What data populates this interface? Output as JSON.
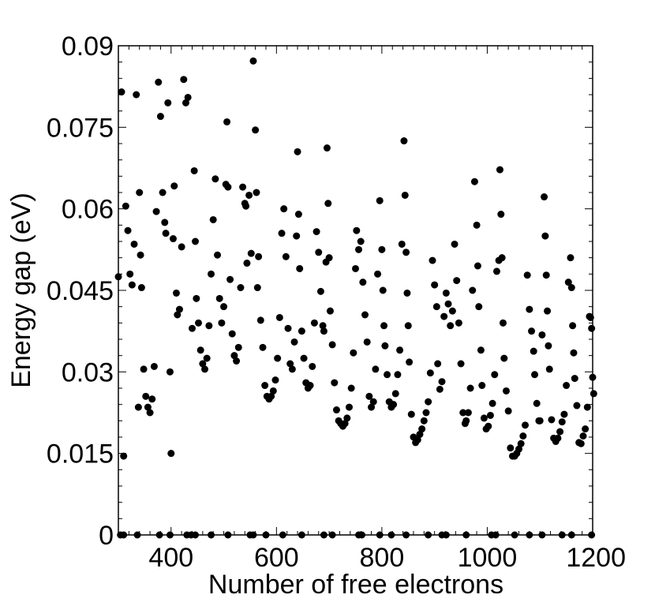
{
  "chart_data": {
    "type": "scatter",
    "xlabel": "Number of free electrons",
    "ylabel": "Energy gap (eV)",
    "xlim": [
      300,
      1200
    ],
    "ylim": [
      0,
      0.09
    ],
    "x_ticks": [
      400,
      600,
      800,
      1000,
      1200
    ],
    "x_tick_labels": [
      "400",
      "600",
      "800",
      "1000",
      "1200"
    ],
    "y_ticks": [
      0,
      0.015,
      0.03,
      0.045,
      0.06,
      0.075,
      0.09
    ],
    "y_tick_labels": [
      "0",
      "0.015",
      "0.03",
      "0.045",
      "0.06",
      "0.075",
      "0.09"
    ],
    "grid": false,
    "legend": "none",
    "marker_color": "#000000",
    "series": [
      {
        "points": [
          [
            300,
            0.0475
          ],
          [
            306,
            0.0815
          ],
          [
            310,
            0.0145
          ],
          [
            314,
            0.0605
          ],
          [
            318,
            0.056
          ],
          [
            322,
            0.048
          ],
          [
            326,
            0.046
          ],
          [
            330,
            0.0535
          ],
          [
            334,
            0.081
          ],
          [
            338,
            0.0235
          ],
          [
            340,
            0.063
          ],
          [
            342,
            0.0515
          ],
          [
            344,
            0.0455
          ],
          [
            348,
            0.0305
          ],
          [
            352,
            0.0255
          ],
          [
            356,
            0.0235
          ],
          [
            360,
            0.0225
          ],
          [
            364,
            0.025
          ],
          [
            368,
            0.031
          ],
          [
            372,
            0.0595
          ],
          [
            376,
            0.0833
          ],
          [
            380,
            0.077
          ],
          [
            384,
            0.063
          ],
          [
            388,
            0.0575
          ],
          [
            390,
            0.0555
          ],
          [
            394,
            0.0795
          ],
          [
            398,
            0.03
          ],
          [
            400,
            0.015
          ],
          [
            404,
            0.0545
          ],
          [
            406,
            0.0642
          ],
          [
            410,
            0.0445
          ],
          [
            412,
            0.0405
          ],
          [
            416,
            0.0415
          ],
          [
            420,
            0.053
          ],
          [
            424,
            0.0838
          ],
          [
            428,
            0.0795
          ],
          [
            432,
            0.0805
          ],
          [
            440,
            0.038
          ],
          [
            444,
            0.067
          ],
          [
            446,
            0.054
          ],
          [
            448,
            0.0435
          ],
          [
            452,
            0.039
          ],
          [
            456,
            0.034
          ],
          [
            460,
            0.0315
          ],
          [
            464,
            0.0305
          ],
          [
            468,
            0.0325
          ],
          [
            472,
            0.0385
          ],
          [
            476,
            0.048
          ],
          [
            480,
            0.058
          ],
          [
            484,
            0.0655
          ],
          [
            488,
            0.0515
          ],
          [
            492,
            0.0435
          ],
          [
            496,
            0.039
          ],
          [
            500,
            0.042
          ],
          [
            504,
            0.0645
          ],
          [
            506,
            0.076
          ],
          [
            508,
            0.064
          ],
          [
            512,
            0.047
          ],
          [
            516,
            0.037
          ],
          [
            520,
            0.033
          ],
          [
            524,
            0.032
          ],
          [
            528,
            0.0345
          ],
          [
            532,
            0.0455
          ],
          [
            536,
            0.064
          ],
          [
            540,
            0.061
          ],
          [
            542,
            0.0605
          ],
          [
            544,
            0.05
          ],
          [
            548,
            0.0625
          ],
          [
            552,
            0.0518
          ],
          [
            556,
            0.0872
          ],
          [
            560,
            0.0745
          ],
          [
            562,
            0.063
          ],
          [
            564,
            0.0455
          ],
          [
            566,
            0.0512
          ],
          [
            570,
            0.0395
          ],
          [
            574,
            0.0345
          ],
          [
            578,
            0.0275
          ],
          [
            582,
            0.0255
          ],
          [
            586,
            0.025
          ],
          [
            590,
            0.0255
          ],
          [
            594,
            0.0265
          ],
          [
            598,
            0.0285
          ],
          [
            602,
            0.0325
          ],
          [
            606,
            0.04
          ],
          [
            610,
            0.0555
          ],
          [
            614,
            0.06
          ],
          [
            618,
            0.0512
          ],
          [
            622,
            0.038
          ],
          [
            626,
            0.0315
          ],
          [
            630,
            0.0305
          ],
          [
            634,
            0.0355
          ],
          [
            638,
            0.055
          ],
          [
            640,
            0.0705
          ],
          [
            642,
            0.059
          ],
          [
            644,
            0.049
          ],
          [
            648,
            0.0375
          ],
          [
            652,
            0.0325
          ],
          [
            656,
            0.028
          ],
          [
            660,
            0.027
          ],
          [
            664,
            0.0275
          ],
          [
            668,
            0.031
          ],
          [
            672,
            0.039
          ],
          [
            676,
            0.0558
          ],
          [
            680,
            0.052
          ],
          [
            684,
            0.0448
          ],
          [
            688,
            0.0385
          ],
          [
            690,
            0.0375
          ],
          [
            694,
            0.0502
          ],
          [
            696,
            0.0712
          ],
          [
            698,
            0.061
          ],
          [
            700,
            0.051
          ],
          [
            702,
            0.0412
          ],
          [
            706,
            0.035
          ],
          [
            710,
            0.028
          ],
          [
            714,
            0.023
          ],
          [
            718,
            0.021
          ],
          [
            722,
            0.0205
          ],
          [
            726,
            0.02
          ],
          [
            730,
            0.0205
          ],
          [
            734,
            0.0215
          ],
          [
            738,
            0.0235
          ],
          [
            742,
            0.027
          ],
          [
            746,
            0.0335
          ],
          [
            750,
            0.049
          ],
          [
            752,
            0.056
          ],
          [
            756,
            0.0525
          ],
          [
            760,
            0.054
          ],
          [
            764,
            0.0465
          ],
          [
            768,
            0.0405
          ],
          [
            772,
            0.0355
          ],
          [
            776,
            0.0255
          ],
          [
            780,
            0.0235
          ],
          [
            784,
            0.0245
          ],
          [
            788,
            0.0305
          ],
          [
            792,
            0.048
          ],
          [
            796,
            0.0615
          ],
          [
            800,
            0.0525
          ],
          [
            802,
            0.045
          ],
          [
            804,
            0.0385
          ],
          [
            806,
            0.0348
          ],
          [
            810,
            0.0295
          ],
          [
            814,
            0.0245
          ],
          [
            818,
            0.0235
          ],
          [
            822,
            0.024
          ],
          [
            826,
            0.026
          ],
          [
            830,
            0.0295
          ],
          [
            834,
            0.034
          ],
          [
            838,
            0.0535
          ],
          [
            842,
            0.0725
          ],
          [
            844,
            0.0625
          ],
          [
            846,
            0.052
          ],
          [
            848,
            0.0445
          ],
          [
            850,
            0.0385
          ],
          [
            852,
            0.0318
          ],
          [
            856,
            0.0222
          ],
          [
            860,
            0.018
          ],
          [
            864,
            0.017
          ],
          [
            868,
            0.0175
          ],
          [
            872,
            0.0185
          ],
          [
            876,
            0.0195
          ],
          [
            880,
            0.021
          ],
          [
            884,
            0.0225
          ],
          [
            888,
            0.0245
          ],
          [
            892,
            0.0298
          ],
          [
            896,
            0.0505
          ],
          [
            900,
            0.046
          ],
          [
            904,
            0.042
          ],
          [
            906,
            0.0315
          ],
          [
            910,
            0.0268
          ],
          [
            914,
            0.0282
          ],
          [
            918,
            0.0402
          ],
          [
            922,
            0.0445
          ],
          [
            926,
            0.0425
          ],
          [
            930,
            0.0385
          ],
          [
            934,
            0.0412
          ],
          [
            938,
            0.0535
          ],
          [
            942,
            0.0468
          ],
          [
            946,
            0.039
          ],
          [
            950,
            0.0315
          ],
          [
            954,
            0.0225
          ],
          [
            958,
            0.0205
          ],
          [
            960,
            0.021
          ],
          [
            964,
            0.0225
          ],
          [
            968,
            0.027
          ],
          [
            972,
            0.045
          ],
          [
            976,
            0.065
          ],
          [
            980,
            0.057
          ],
          [
            982,
            0.0495
          ],
          [
            984,
            0.042
          ],
          [
            988,
            0.034
          ],
          [
            990,
            0.0275
          ],
          [
            994,
            0.0215
          ],
          [
            998,
            0.0195
          ],
          [
            1002,
            0.02
          ],
          [
            1006,
            0.022
          ],
          [
            1010,
            0.0242
          ],
          [
            1014,
            0.0295
          ],
          [
            1018,
            0.0485
          ],
          [
            1022,
            0.0505
          ],
          [
            1024,
            0.0672
          ],
          [
            1026,
            0.059
          ],
          [
            1028,
            0.051
          ],
          [
            1030,
            0.039
          ],
          [
            1032,
            0.0325
          ],
          [
            1036,
            0.0265
          ],
          [
            1040,
            0.0228
          ],
          [
            1044,
            0.016
          ],
          [
            1048,
            0.0145
          ],
          [
            1052,
            0.0145
          ],
          [
            1056,
            0.015
          ],
          [
            1060,
            0.0158
          ],
          [
            1064,
            0.0168
          ],
          [
            1068,
            0.0182
          ],
          [
            1072,
            0.0202
          ],
          [
            1076,
            0.0478
          ],
          [
            1080,
            0.0415
          ],
          [
            1084,
            0.0375
          ],
          [
            1088,
            0.0338
          ],
          [
            1090,
            0.0295
          ],
          [
            1094,
            0.0242
          ],
          [
            1098,
            0.021
          ],
          [
            1100,
            0.021
          ],
          [
            1104,
            0.0368
          ],
          [
            1108,
            0.0622
          ],
          [
            1110,
            0.055
          ],
          [
            1112,
            0.0478
          ],
          [
            1114,
            0.0412
          ],
          [
            1116,
            0.0348
          ],
          [
            1118,
            0.0305
          ],
          [
            1122,
            0.0212
          ],
          [
            1126,
            0.0178
          ],
          [
            1130,
            0.0172
          ],
          [
            1134,
            0.0178
          ],
          [
            1138,
            0.019
          ],
          [
            1142,
            0.0208
          ],
          [
            1146,
            0.0222
          ],
          [
            1150,
            0.0275
          ],
          [
            1154,
            0.0465
          ],
          [
            1158,
            0.051
          ],
          [
            1160,
            0.0455
          ],
          [
            1162,
            0.0385
          ],
          [
            1164,
            0.0335
          ],
          [
            1166,
            0.0288
          ],
          [
            1170,
            0.0238
          ],
          [
            1174,
            0.017
          ],
          [
            1178,
            0.0168
          ],
          [
            1182,
            0.0182
          ],
          [
            1186,
            0.0195
          ],
          [
            1190,
            0.0235
          ],
          [
            1194,
            0.0402
          ],
          [
            1196,
            0.04
          ],
          [
            1198,
            0.038
          ],
          [
            1200,
            0.029
          ],
          [
            1202,
            0.026
          ],
          [
            304,
            0
          ],
          [
            310,
            0
          ],
          [
            336,
            0
          ],
          [
            378,
            0
          ],
          [
            398,
            0
          ],
          [
            430,
            0
          ],
          [
            438,
            0
          ],
          [
            446,
            0
          ],
          [
            476,
            0
          ],
          [
            508,
            0
          ],
          [
            550,
            0
          ],
          [
            556,
            0
          ],
          [
            580,
            0
          ],
          [
            612,
            0
          ],
          [
            648,
            0
          ],
          [
            690,
            0
          ],
          [
            706,
            0
          ],
          [
            756,
            0
          ],
          [
            762,
            0
          ],
          [
            796,
            0
          ],
          [
            818,
            0
          ],
          [
            846,
            0
          ],
          [
            888,
            0
          ],
          [
            914,
            0
          ],
          [
            922,
            0
          ],
          [
            960,
            0
          ],
          [
            1008,
            0
          ],
          [
            1016,
            0
          ],
          [
            1052,
            0
          ],
          [
            1080,
            0
          ],
          [
            1104,
            0
          ],
          [
            1142,
            0
          ],
          [
            1160,
            0
          ],
          [
            1198,
            0
          ]
        ]
      }
    ]
  }
}
